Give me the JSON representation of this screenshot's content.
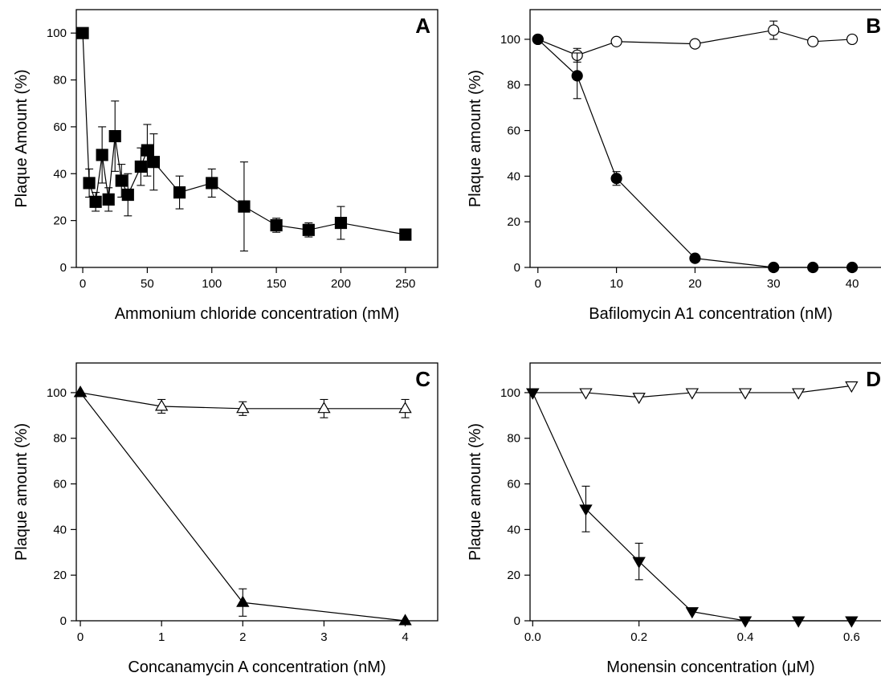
{
  "chart_data": [
    {
      "panel": "A",
      "type": "scatter",
      "xlabel": "Ammonium chloride concentration (mM)",
      "ylabel": "Plaque Amount (%)",
      "xlim": [
        -5,
        275
      ],
      "ylim": [
        0,
        110
      ],
      "xticks": [
        0,
        50,
        100,
        150,
        200,
        250
      ],
      "yticks": [
        0,
        20,
        40,
        60,
        80,
        100
      ],
      "series": [
        {
          "marker": "square",
          "filled": true,
          "x": [
            0,
            5,
            10,
            15,
            20,
            25,
            30,
            35,
            45,
            50,
            55,
            75,
            100,
            125,
            150,
            175,
            200,
            250
          ],
          "y": [
            100,
            36,
            28,
            48,
            29,
            56,
            37,
            31,
            43,
            50,
            45,
            32,
            36,
            26,
            18,
            16,
            19,
            14
          ],
          "err": [
            0,
            6,
            4,
            12,
            5,
            15,
            7,
            9,
            8,
            11,
            12,
            7,
            6,
            19,
            3,
            3,
            7,
            2
          ]
        }
      ]
    },
    {
      "panel": "B",
      "type": "line",
      "xlabel": "Bafilomycin A1 concentration (nM)",
      "ylabel": "Plaque amount (%)",
      "xlim": [
        -1,
        45
      ],
      "ylim": [
        0,
        113
      ],
      "xticks": [
        0,
        10,
        20,
        30,
        40
      ],
      "yticks": [
        0,
        20,
        40,
        60,
        80,
        100
      ],
      "series": [
        {
          "marker": "circle",
          "filled": false,
          "x": [
            0,
            5,
            10,
            20,
            30,
            35,
            40
          ],
          "y": [
            100,
            93,
            99,
            98,
            104,
            99,
            100
          ],
          "err": [
            0,
            3,
            0,
            0,
            4,
            0,
            0
          ]
        },
        {
          "marker": "circle",
          "filled": true,
          "x": [
            0,
            5,
            10,
            20,
            30,
            35,
            40
          ],
          "y": [
            100,
            84,
            39,
            4,
            0,
            0,
            0
          ],
          "err": [
            0,
            10,
            3,
            0,
            0,
            0,
            0
          ]
        }
      ]
    },
    {
      "panel": "C",
      "type": "line",
      "xlabel": "Concanamycin A  concentration (nM)",
      "ylabel": "Plaque amount (%)",
      "xlim": [
        -0.05,
        4.4
      ],
      "ylim": [
        0,
        113
      ],
      "xticks": [
        0,
        1,
        2,
        3,
        4
      ],
      "yticks": [
        0,
        20,
        40,
        60,
        80,
        100
      ],
      "series": [
        {
          "marker": "triangle-up",
          "filled": false,
          "x": [
            0,
            1,
            2,
            3,
            4
          ],
          "y": [
            100,
            94,
            93,
            93,
            93
          ],
          "err": [
            0,
            3,
            3,
            4,
            4
          ]
        },
        {
          "marker": "triangle-up",
          "filled": true,
          "x": [
            0,
            2,
            4
          ],
          "y": [
            100,
            8,
            0
          ],
          "err": [
            0,
            6,
            0
          ]
        }
      ]
    },
    {
      "panel": "D",
      "type": "line",
      "xlabel": "Monensin concentration (μM)",
      "ylabel": "Plaque amount (%)",
      "xlim": [
        -0.005,
        0.675
      ],
      "ylim": [
        0,
        113
      ],
      "xticks": [
        0.0,
        0.2,
        0.4,
        0.6
      ],
      "xtick_labels": [
        "0.0",
        "0.2",
        "0.4",
        "0.6"
      ],
      "yticks": [
        0,
        20,
        40,
        60,
        80,
        100
      ],
      "series": [
        {
          "marker": "triangle-down",
          "filled": false,
          "x": [
            0,
            0.1,
            0.2,
            0.3,
            0.4,
            0.5,
            0.6
          ],
          "y": [
            100,
            100,
            98,
            100,
            100,
            100,
            103
          ],
          "err": [
            0,
            0,
            0,
            0,
            0,
            0,
            0
          ]
        },
        {
          "marker": "triangle-down",
          "filled": true,
          "x": [
            0,
            0.1,
            0.2,
            0.3,
            0.4,
            0.5,
            0.6
          ],
          "y": [
            100,
            49,
            26,
            4,
            0,
            0,
            0
          ],
          "err": [
            0,
            10,
            8,
            0,
            0,
            0,
            0
          ]
        }
      ]
    }
  ]
}
